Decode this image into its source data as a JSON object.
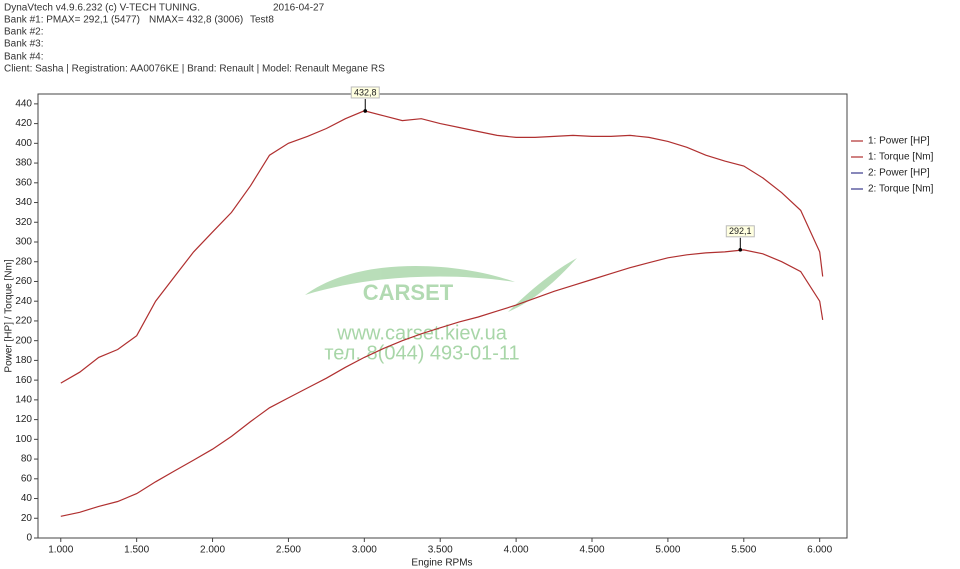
{
  "chart_data": {
    "type": "line",
    "header": {
      "software": "DynaVtech v4.9.6.232 (c) V-TECH TUNING.",
      "date": "2016-04-27",
      "bank1": "Bank #1: PMAX= 292,1 (5477)",
      "bank1_nmax": "NMAX= 432,8 (3006)",
      "test": "Test8",
      "bank2": "Bank #2:",
      "bank3": "Bank #3:",
      "bank4": "Bank #4:",
      "client": "Client: Sasha | Registration: AA0076KE | Brand: Renault | Model: Renault Megane RS"
    },
    "watermark": [
      "CARSET",
      "www.carset.kiev.ua",
      "тел. 8(044) 493-01-11"
    ],
    "x_label": "Engine RPMs",
    "y_label": "Power [HP] / Torque [Nm]",
    "x": [
      1000,
      1125,
      1250,
      1375,
      1500,
      1625,
      1750,
      1875,
      2000,
      2125,
      2250,
      2375,
      2500,
      2625,
      2750,
      2875,
      3000,
      3125,
      3250,
      3375,
      3500,
      3625,
      3750,
      3875,
      4000,
      4125,
      4250,
      4375,
      4500,
      4625,
      4750,
      4875,
      5000,
      5125,
      5250,
      5375,
      5500,
      5625,
      5750,
      5875,
      6000,
      6020
    ],
    "series": [
      {
        "name": "1: Power [HP]",
        "color": "#b03030",
        "values": [
          22,
          26,
          32,
          37,
          45,
          57,
          68,
          79,
          90,
          103,
          118,
          132,
          142,
          152,
          162,
          173,
          183,
          192,
          200,
          207,
          213,
          219,
          224,
          230,
          236,
          243,
          250,
          256,
          262,
          268,
          274,
          279,
          284,
          287,
          289,
          290,
          292,
          288,
          280,
          270,
          240,
          221
        ]
      },
      {
        "name": "1: Torque [Nm]",
        "color": "#b03030",
        "values": [
          157,
          168,
          183,
          191,
          205,
          240,
          265,
          290,
          310,
          330,
          357,
          388,
          400,
          407,
          415,
          425,
          433,
          428,
          423,
          425,
          420,
          416,
          412,
          408,
          406,
          406,
          407,
          408,
          407,
          407,
          408,
          406,
          402,
          396,
          388,
          382,
          377,
          365,
          350,
          332,
          290,
          265
        ]
      },
      {
        "name": "2: Power [HP]",
        "color": "#3a3a8c",
        "values": [
          null,
          null,
          null,
          null,
          null,
          null,
          null,
          null,
          null,
          null,
          null,
          null,
          null,
          null,
          null,
          null,
          null,
          null,
          null,
          null,
          null,
          null,
          null,
          null,
          null,
          null,
          null,
          null,
          null,
          null,
          null,
          null,
          null,
          null,
          null,
          null,
          null,
          null,
          null,
          null,
          null,
          null
        ]
      },
      {
        "name": "2: Torque [Nm]",
        "color": "#3a3a8c",
        "values": [
          null,
          null,
          null,
          null,
          null,
          null,
          null,
          null,
          null,
          null,
          null,
          null,
          null,
          null,
          null,
          null,
          null,
          null,
          null,
          null,
          null,
          null,
          null,
          null,
          null,
          null,
          null,
          null,
          null,
          null,
          null,
          null,
          null,
          null,
          null,
          null,
          null,
          null,
          null,
          null,
          null,
          null
        ]
      }
    ],
    "annotations": [
      {
        "x": 3006,
        "y": 432.8,
        "label": "432,8"
      },
      {
        "x": 5477,
        "y": 292.1,
        "label": "292,1"
      }
    ],
    "xlim": [
      850,
      6180
    ],
    "ylim": [
      0,
      450
    ],
    "xticks": [
      {
        "value": 1000,
        "label": "1.000"
      },
      {
        "value": 1500,
        "label": "1.500"
      },
      {
        "value": 2000,
        "label": "2.000"
      },
      {
        "value": 2500,
        "label": "2.500"
      },
      {
        "value": 3000,
        "label": "3.000"
      },
      {
        "value": 3500,
        "label": "3.500"
      },
      {
        "value": 4000,
        "label": "4.000"
      },
      {
        "value": 4500,
        "label": "4.500"
      },
      {
        "value": 5000,
        "label": "5.000"
      },
      {
        "value": 5500,
        "label": "5.500"
      },
      {
        "value": 6000,
        "label": "6.000"
      }
    ],
    "yticks": [
      0,
      20,
      40,
      60,
      80,
      100,
      120,
      140,
      160,
      180,
      200,
      220,
      240,
      260,
      280,
      300,
      320,
      340,
      360,
      380,
      400,
      420,
      440
    ],
    "legend": "right"
  }
}
